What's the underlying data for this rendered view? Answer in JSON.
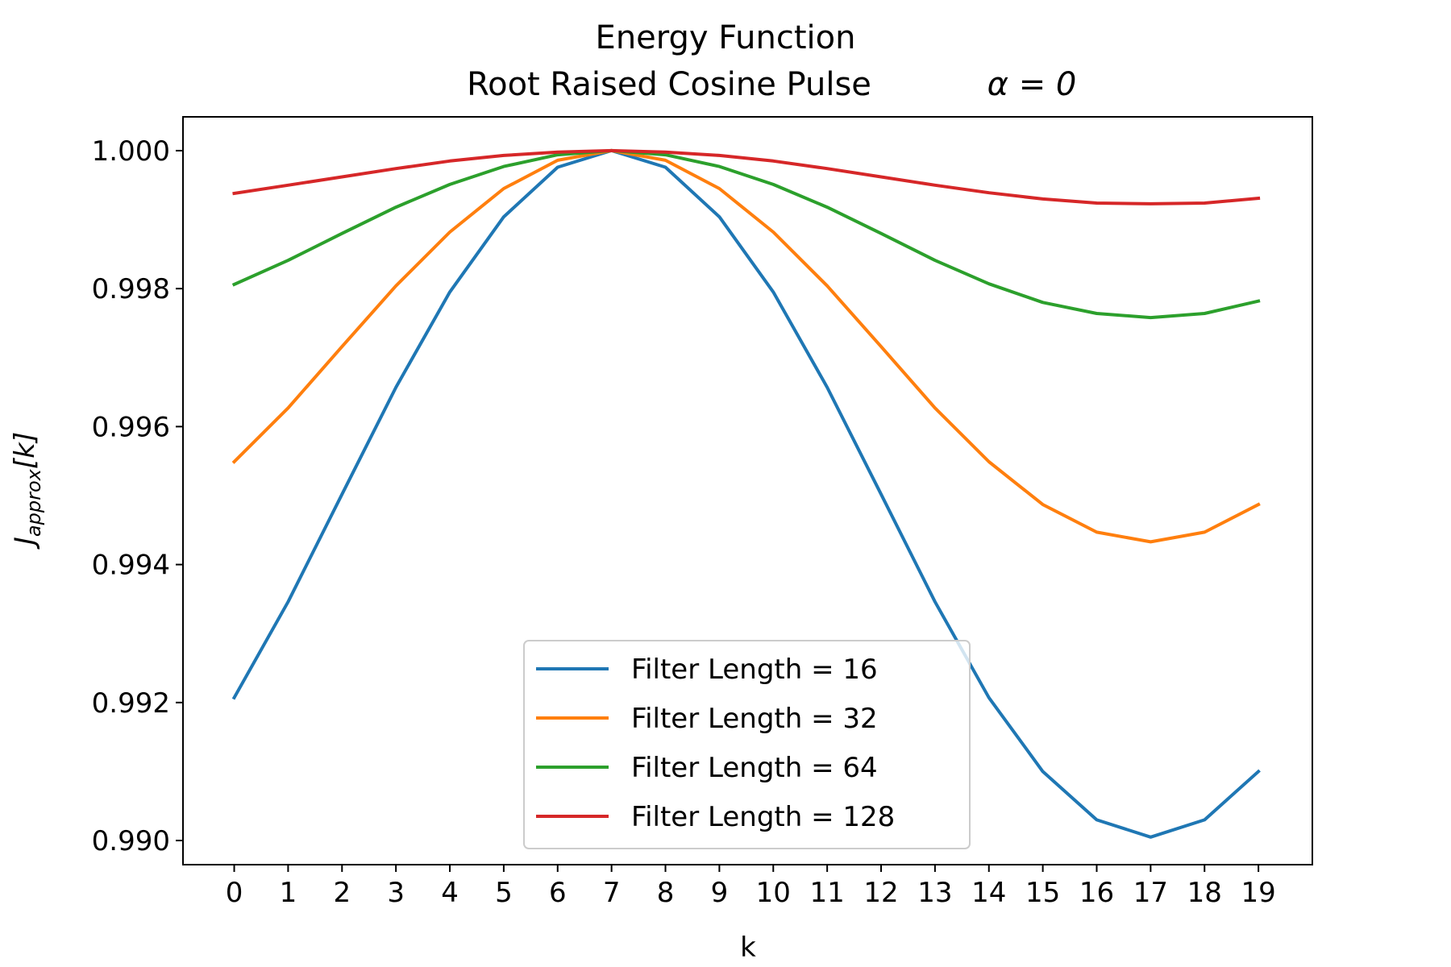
{
  "chart_data": {
    "type": "line",
    "title": "Energy Function",
    "subtitle": "Root Raised Cosine Pulse",
    "subtitle_math": "α = 0",
    "xlabel": "k",
    "ylabel_main": "J",
    "ylabel_subscript": "approx",
    "ylabel_suffix": "[k]",
    "x": [
      0,
      1,
      2,
      3,
      4,
      5,
      6,
      7,
      8,
      9,
      10,
      11,
      12,
      13,
      14,
      15,
      16,
      17,
      18,
      19
    ],
    "x_ticks": [
      "0",
      "1",
      "2",
      "3",
      "4",
      "5",
      "6",
      "7",
      "8",
      "9",
      "10",
      "11",
      "12",
      "13",
      "14",
      "15",
      "16",
      "17",
      "18",
      "19"
    ],
    "y_ticks": [
      "0.990",
      "0.992",
      "0.994",
      "0.996",
      "0.998",
      "1.000"
    ],
    "y_tick_values": [
      0.99,
      0.992,
      0.994,
      0.996,
      0.998,
      1.0
    ],
    "xlim": [
      -0.95,
      20.0
    ],
    "ylim": [
      0.98965,
      1.00049
    ],
    "grid": false,
    "legend_position": "lower center",
    "series": [
      {
        "name": "Filter Length = 16",
        "color": "#1f77b4",
        "values": [
          0.99207,
          0.99346,
          0.99502,
          0.99657,
          0.99795,
          0.99904,
          0.99976,
          1.0,
          0.99976,
          0.99904,
          0.99795,
          0.99657,
          0.99502,
          0.99346,
          0.99207,
          0.991,
          0.9903,
          0.99005,
          0.9903,
          0.991
        ]
      },
      {
        "name": "Filter Length = 32",
        "color": "#ff7f0e",
        "values": [
          0.99549,
          0.99627,
          0.99716,
          0.99804,
          0.99882,
          0.99945,
          0.99986,
          1.0,
          0.99986,
          0.99945,
          0.99882,
          0.99804,
          0.99716,
          0.99627,
          0.99549,
          0.99487,
          0.99447,
          0.99433,
          0.99447,
          0.99487
        ]
      },
      {
        "name": "Filter Length = 64",
        "color": "#2ca02c",
        "values": [
          0.99806,
          0.99841,
          0.9988,
          0.99918,
          0.99951,
          0.99977,
          0.99994,
          1.0,
          0.99994,
          0.99977,
          0.99951,
          0.99918,
          0.9988,
          0.99841,
          0.99807,
          0.9978,
          0.99764,
          0.99758,
          0.99764,
          0.99782
        ]
      },
      {
        "name": "Filter Length = 128",
        "color": "#d62728",
        "values": [
          0.99938,
          0.9995,
          0.99962,
          0.99974,
          0.99985,
          0.99993,
          0.99998,
          1.0,
          0.99998,
          0.99993,
          0.99985,
          0.99974,
          0.99962,
          0.9995,
          0.99939,
          0.9993,
          0.99924,
          0.99923,
          0.99924,
          0.99931
        ]
      }
    ]
  }
}
